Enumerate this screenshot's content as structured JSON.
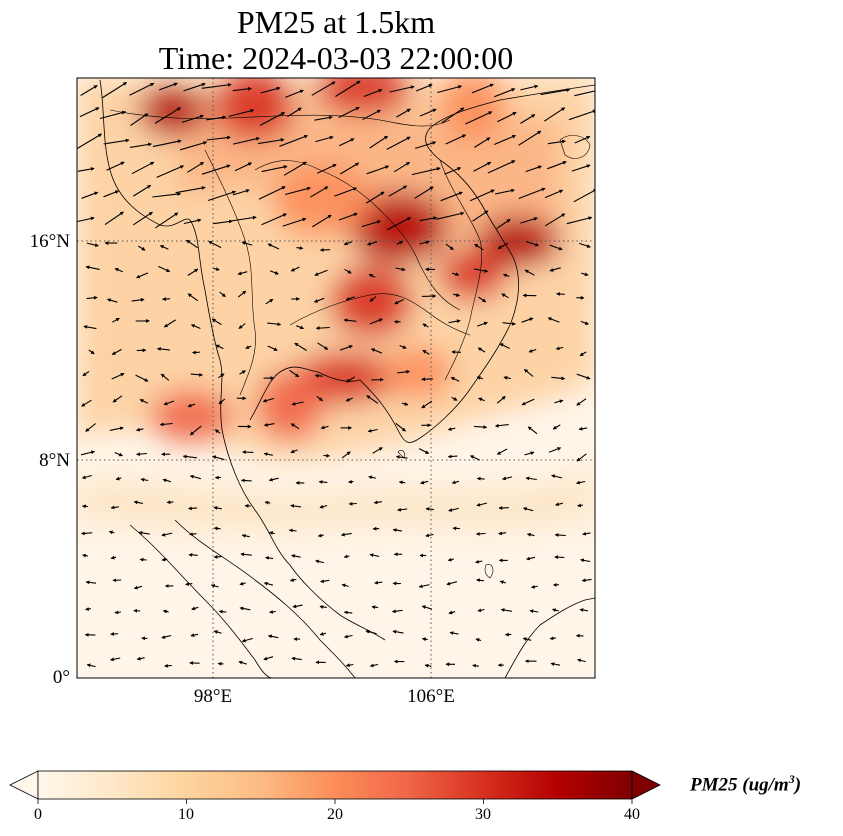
{
  "title_line1": "PM25 at 1.5km",
  "title_line2": "Time: 2024-03-03 22:00:00",
  "map": {
    "lon_range": [
      93,
      112
    ],
    "lat_range": [
      0,
      22
    ],
    "gridlines": "dotted",
    "lat_ticks": [
      {
        "value": 0,
        "label": "0°"
      },
      {
        "value": 8,
        "label": "8°N"
      },
      {
        "value": 16,
        "label": "16°N"
      }
    ],
    "lon_ticks": [
      {
        "value": 98,
        "label": "98°E"
      },
      {
        "value": 106,
        "label": "106°E"
      }
    ],
    "pollution_hotspots": [
      {
        "lon": 96.5,
        "lat": 20.8,
        "value": 34
      },
      {
        "lon": 99.5,
        "lat": 21.0,
        "value": 28
      },
      {
        "lon": 103.5,
        "lat": 21.6,
        "value": 32
      },
      {
        "lon": 107.5,
        "lat": 21.0,
        "value": 22
      },
      {
        "lon": 109.2,
        "lat": 16.0,
        "value": 36
      },
      {
        "lon": 104.8,
        "lat": 16.5,
        "value": 34
      },
      {
        "lon": 107.5,
        "lat": 14.8,
        "value": 32
      },
      {
        "lon": 103.8,
        "lat": 13.8,
        "value": 30
      },
      {
        "lon": 102.8,
        "lat": 11.0,
        "value": 28
      },
      {
        "lon": 100.8,
        "lat": 10.0,
        "value": 24
      },
      {
        "lon": 97.2,
        "lat": 9.6,
        "value": 26
      },
      {
        "lon": 102.0,
        "lat": 17.5,
        "value": 20
      },
      {
        "lon": 105.5,
        "lat": 11.2,
        "value": 22
      }
    ],
    "wind_field": "quiver arrows"
  },
  "colorbar": {
    "colormap": "OrRd",
    "min": 0,
    "max": 40,
    "extend": "both",
    "ticks": [
      0,
      10,
      20,
      30,
      40
    ],
    "label": "PM25 (ug/m",
    "label_superscript": "3",
    "label_close": ")",
    "colors": [
      "#fff7ec",
      "#fee8c8",
      "#fdd49e",
      "#fdbb84",
      "#fc8d59",
      "#ef6548",
      "#d7301f",
      "#b30000",
      "#7f0000"
    ]
  }
}
